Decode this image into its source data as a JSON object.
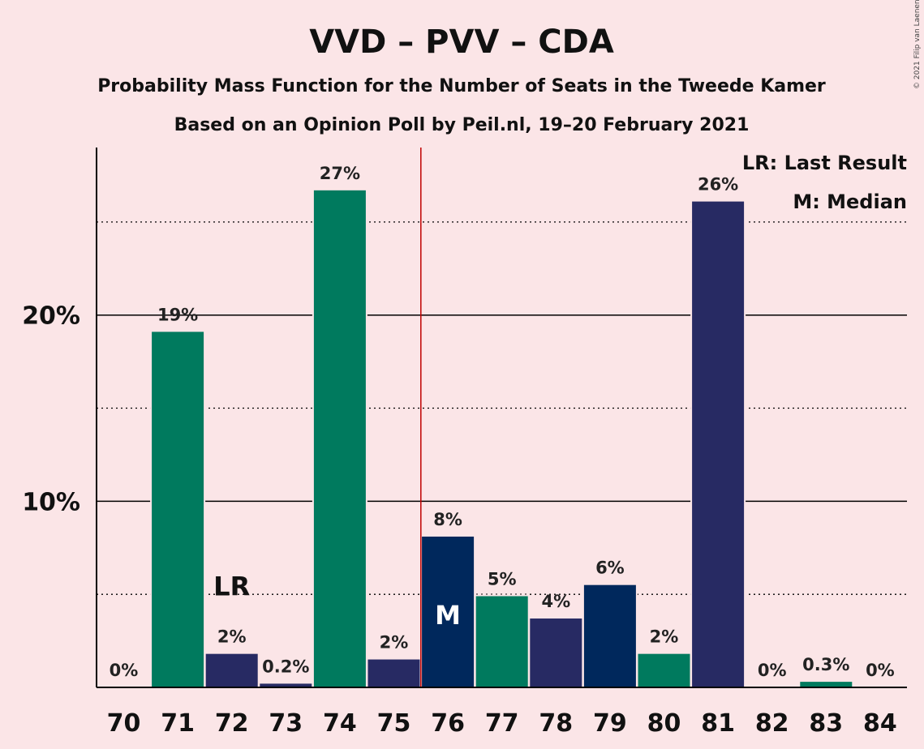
{
  "chart_data": {
    "type": "bar",
    "title": "VVD – PVV – CDA",
    "subtitle": "Probability Mass Function for the Number of Seats in the Tweede Kamer",
    "subtitle2": "Based on an Opinion Poll by Peil.nl, 19–20 February 2021",
    "copyright": "© 2021 Filip van Laenen",
    "categories": [
      "70",
      "71",
      "72",
      "73",
      "74",
      "75",
      "76",
      "77",
      "78",
      "79",
      "80",
      "81",
      "82",
      "83",
      "84"
    ],
    "values": [
      0,
      19.1,
      1.8,
      0.2,
      26.7,
      1.5,
      8.1,
      4.9,
      3.7,
      5.5,
      1.8,
      26.1,
      0,
      0.3,
      0
    ],
    "labels": [
      "0%",
      "19%",
      "2%",
      "0.2%",
      "27%",
      "2%",
      "8%",
      "5%",
      "4%",
      "6%",
      "2%",
      "26%",
      "0%",
      "0.3%",
      "0%"
    ],
    "bar_colors": [
      "#007a5e",
      "#007a5e",
      "#272a63",
      "#272a63",
      "#007a5e",
      "#272a63",
      "#00285c",
      "#007a5e",
      "#272a63",
      "#00285c",
      "#007a5e",
      "#272a63",
      "#272a63",
      "#007a5e",
      "#272a63"
    ],
    "yticks": [
      {
        "value": 10,
        "label": "10%"
      },
      {
        "value": 20,
        "label": "20%"
      }
    ],
    "minor_gridlines": [
      5,
      15,
      25
    ],
    "ylim": [
      0,
      29
    ],
    "majority_line_after": "75",
    "last_result": {
      "category": "72",
      "label": "LR"
    },
    "median": {
      "category": "76",
      "label": "M"
    },
    "legend": [
      "LR: Last Result",
      "M: Median"
    ],
    "legend_position": "top-right",
    "colors": {
      "background": "#fbe5e7",
      "majority_line": "#c00000",
      "median_text": "#ffffff",
      "axis": "#000000"
    }
  }
}
